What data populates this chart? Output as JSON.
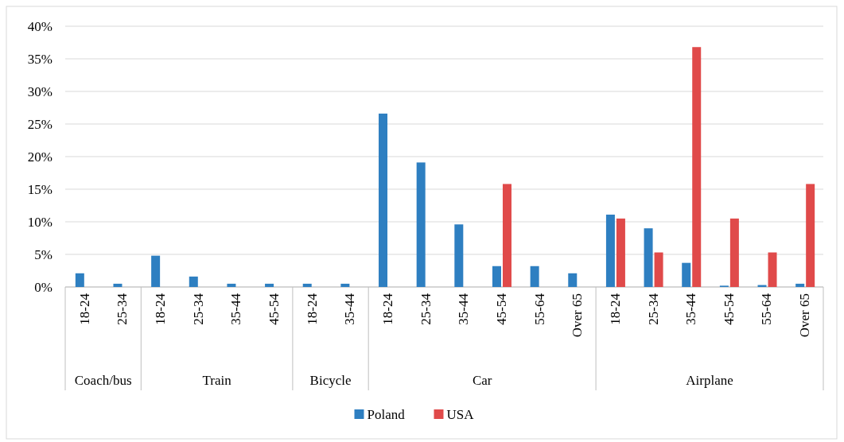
{
  "chart_data": {
    "type": "bar",
    "categories": [
      "18-24",
      "25-34",
      "18-24",
      "25-34",
      "35-44",
      "45-54",
      "18-24",
      "35-44",
      "18-24",
      "25-34",
      "35-44",
      "45-54",
      "55-64",
      "Over 65",
      "18-24",
      "25-34",
      "35-44",
      "45-54",
      "55-64",
      "Over 65"
    ],
    "annotations": [
      "Coach/bus",
      "Train",
      "Bicycle",
      "Car",
      "Airplane"
    ],
    "series": [
      {
        "name": "Poland",
        "color": "#2e7fc1",
        "values": [
          2.1,
          0.5,
          4.8,
          1.6,
          0.5,
          0.5,
          0.5,
          0.5,
          26.6,
          19.1,
          9.6,
          3.2,
          3.2,
          2.1,
          11.1,
          9.0,
          3.7,
          0.2,
          0.3,
          0.5
        ]
      },
      {
        "name": "USA",
        "color": "#e04a4a",
        "values": [
          0,
          0,
          0,
          0,
          0,
          0,
          0,
          0,
          0,
          0,
          0,
          15.8,
          0,
          0,
          10.5,
          5.3,
          36.8,
          10.5,
          5.3,
          15.8
        ]
      }
    ],
    "ylim": [
      0,
      40
    ],
    "yticks": [
      {
        "value": 0,
        "label": "0%"
      },
      {
        "value": 5,
        "label": "5%"
      },
      {
        "value": 10,
        "label": "10%"
      },
      {
        "value": 15,
        "label": "15%"
      },
      {
        "value": 20,
        "label": "20%"
      },
      {
        "value": 25,
        "label": "25%"
      },
      {
        "value": 30,
        "label": "30%"
      },
      {
        "value": 35,
        "label": "35%"
      },
      {
        "value": 40,
        "label": "40%"
      }
    ],
    "grid": "y",
    "legend": "bottom"
  }
}
